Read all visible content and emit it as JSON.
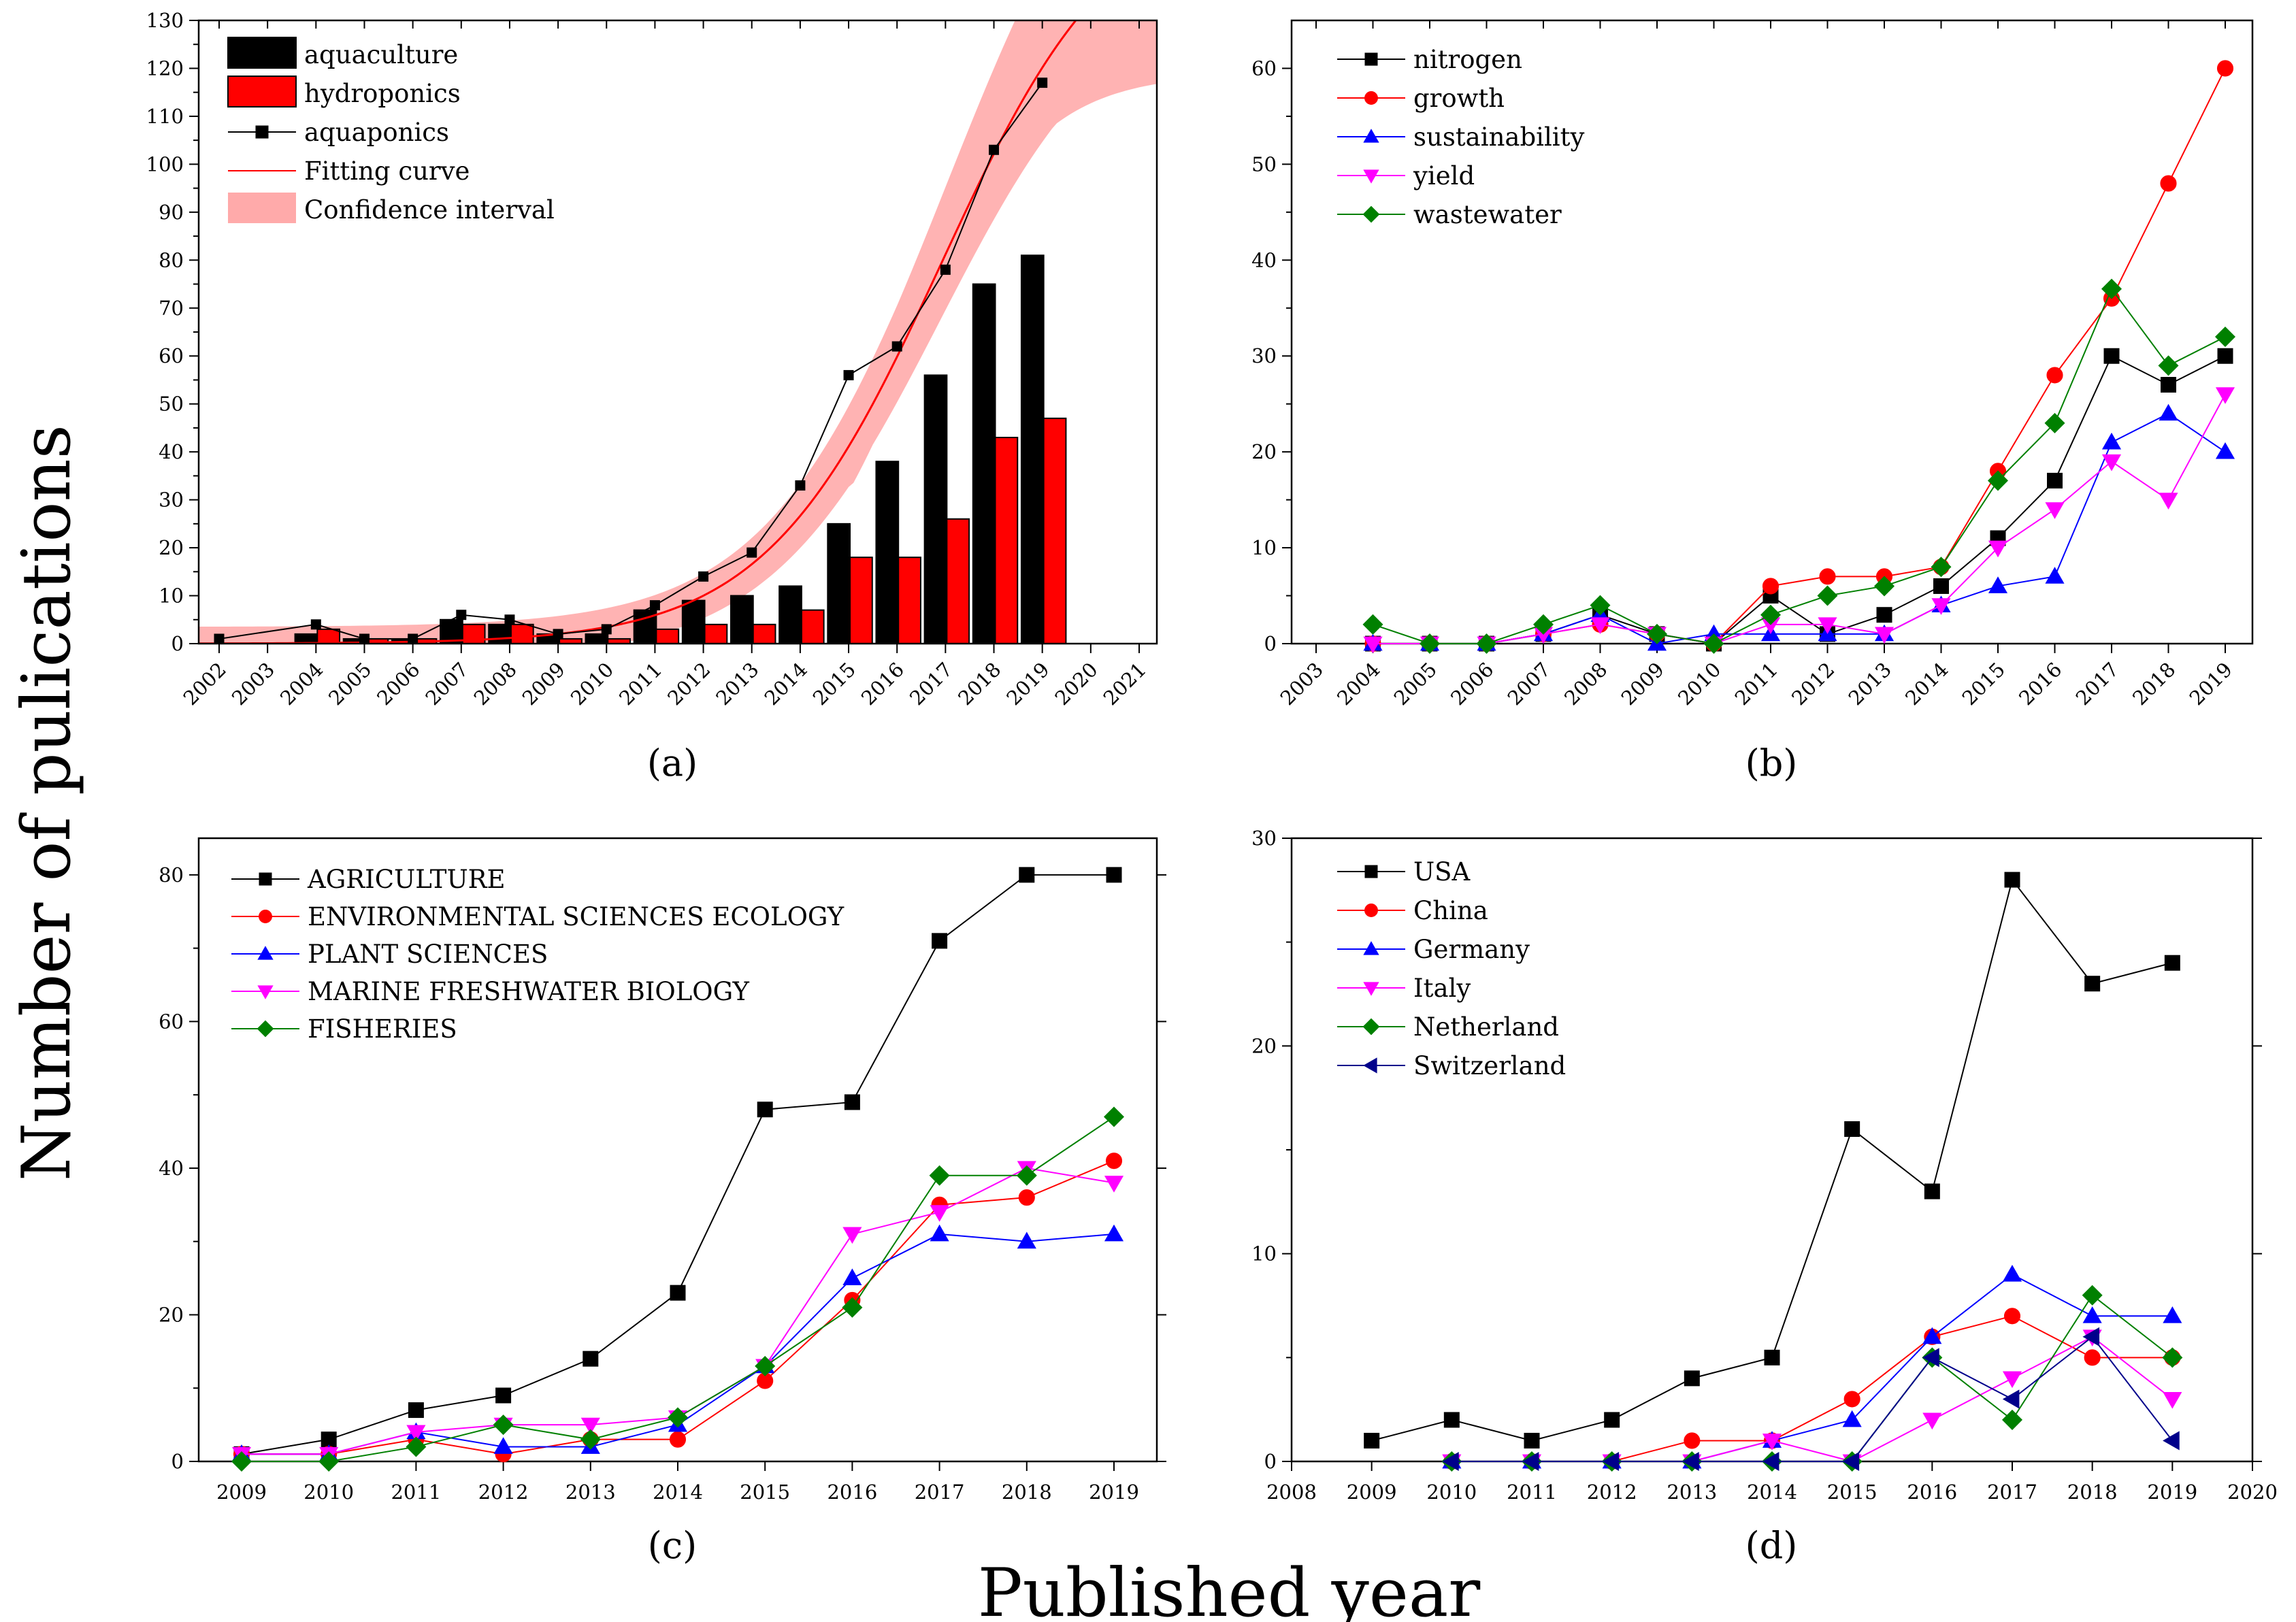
{
  "figure": {
    "ylabel": "Number of pulications",
    "xlabel": "Published year"
  },
  "chart_data": [
    {
      "id": "a",
      "type": "bar",
      "caption": "(a)",
      "ylim": [
        0,
        130
      ],
      "yticks": [
        0,
        10,
        20,
        30,
        40,
        50,
        60,
        70,
        80,
        90,
        100,
        110,
        120,
        130
      ],
      "categories": [
        "2002",
        "2003",
        "2004",
        "2005",
        "2006",
        "2007",
        "2008",
        "2009",
        "2010",
        "2011",
        "2012",
        "2013",
        "2014",
        "2015",
        "2016",
        "2017",
        "2018",
        "2019",
        "2020",
        "2021"
      ],
      "series": [
        {
          "name": "aquaculture",
          "kind": "bar",
          "color": "#000000",
          "values": [
            0,
            0,
            2,
            1,
            1,
            5,
            4,
            2,
            2,
            7,
            9,
            10,
            12,
            25,
            38,
            56,
            75,
            81,
            null,
            null
          ]
        },
        {
          "name": "hydroponics",
          "kind": "bar",
          "color": "#ff0000",
          "values": [
            0,
            0,
            3,
            1,
            1,
            4,
            4,
            1,
            1,
            3,
            4,
            4,
            7,
            18,
            18,
            26,
            43,
            47,
            null,
            null
          ]
        },
        {
          "name": "aquaponics",
          "kind": "line",
          "color": "#000000",
          "marker": "square",
          "values": [
            1,
            null,
            4,
            1,
            1,
            6,
            5,
            2,
            3,
            8,
            14,
            19,
            33,
            56,
            62,
            78,
            103,
            117,
            null,
            null
          ]
        },
        {
          "name": "Fitting curve",
          "kind": "curve",
          "color": "#ff0000"
        },
        {
          "name": "Confidence interval",
          "kind": "band",
          "color": "#ffaaaa"
        }
      ]
    },
    {
      "id": "b",
      "type": "line",
      "caption": "(b)",
      "ylim": [
        0,
        65
      ],
      "yticks": [
        0,
        10,
        20,
        30,
        40,
        50,
        60
      ],
      "categories": [
        "2003",
        "2004",
        "2005",
        "2006",
        "2007",
        "2008",
        "2009",
        "2010",
        "2011",
        "2012",
        "2013",
        "2014",
        "2015",
        "2016",
        "2017",
        "2018",
        "2019"
      ],
      "series": [
        {
          "name": "nitrogen",
          "color": "#000000",
          "marker": "square",
          "values": [
            null,
            0,
            0,
            0,
            1,
            3,
            1,
            0,
            5,
            1,
            3,
            6,
            11,
            17,
            30,
            27,
            30
          ]
        },
        {
          "name": "growth",
          "color": "#ff0000",
          "marker": "circle",
          "values": [
            null,
            0,
            0,
            0,
            1,
            2,
            1,
            0,
            6,
            7,
            7,
            8,
            18,
            28,
            36,
            48,
            60
          ]
        },
        {
          "name": "sustainability",
          "color": "#0000ff",
          "marker": "triangle-up",
          "values": [
            null,
            0,
            0,
            0,
            1,
            3,
            0,
            1,
            1,
            1,
            1,
            4,
            6,
            7,
            21,
            24,
            20
          ]
        },
        {
          "name": "yield",
          "color": "#ff00ff",
          "marker": "triangle-down",
          "values": [
            null,
            0,
            0,
            0,
            1,
            2,
            1,
            0,
            2,
            2,
            1,
            4,
            10,
            14,
            19,
            15,
            26
          ]
        },
        {
          "name": "wastewater",
          "color": "#008000",
          "marker": "diamond",
          "values": [
            null,
            2,
            0,
            0,
            2,
            4,
            1,
            0,
            3,
            5,
            6,
            8,
            17,
            23,
            37,
            29,
            32
          ]
        }
      ]
    },
    {
      "id": "c",
      "type": "line",
      "caption": "(c)",
      "ylim": [
        0,
        85
      ],
      "yticks": [
        0,
        20,
        40,
        60,
        80
      ],
      "categories": [
        "2009",
        "2010",
        "2011",
        "2012",
        "2013",
        "2014",
        "2015",
        "2016",
        "2017",
        "2018",
        "2019"
      ],
      "series": [
        {
          "name": "AGRICULTURE",
          "color": "#000000",
          "marker": "square",
          "values": [
            1,
            3,
            7,
            9,
            14,
            23,
            48,
            49,
            71,
            80,
            80
          ]
        },
        {
          "name": "ENVIRONMENTAL SCIENCES ECOLOGY",
          "color": "#ff0000",
          "marker": "circle",
          "values": [
            1,
            1,
            3,
            1,
            3,
            3,
            11,
            22,
            35,
            36,
            41
          ]
        },
        {
          "name": "PLANT SCIENCES",
          "color": "#0000ff",
          "marker": "triangle-up",
          "values": [
            1,
            1,
            4,
            2,
            2,
            5,
            13,
            25,
            31,
            30,
            31
          ]
        },
        {
          "name": "MARINE FRESHWATER BIOLOGY",
          "color": "#ff00ff",
          "marker": "triangle-down",
          "values": [
            1,
            1,
            4,
            5,
            5,
            6,
            13,
            31,
            34,
            40,
            38
          ]
        },
        {
          "name": "FISHERIES",
          "color": "#008000",
          "marker": "diamond",
          "values": [
            0,
            0,
            2,
            5,
            3,
            6,
            13,
            21,
            39,
            39,
            47
          ]
        }
      ]
    },
    {
      "id": "d",
      "type": "line",
      "caption": "(d)",
      "ylim": [
        0,
        30
      ],
      "yticks": [
        0,
        10,
        20,
        30
      ],
      "categories": [
        "2008",
        "2009",
        "2010",
        "2011",
        "2012",
        "2013",
        "2014",
        "2015",
        "2016",
        "2017",
        "2018",
        "2019",
        "2020"
      ],
      "series": [
        {
          "name": "USA",
          "color": "#000000",
          "marker": "square",
          "values": [
            null,
            1,
            2,
            1,
            2,
            4,
            5,
            16,
            13,
            28,
            23,
            24,
            null
          ]
        },
        {
          "name": "China",
          "color": "#ff0000",
          "marker": "circle",
          "values": [
            null,
            null,
            0,
            0,
            0,
            1,
            1,
            3,
            6,
            7,
            5,
            5,
            null
          ]
        },
        {
          "name": "Germany",
          "color": "#0000ff",
          "marker": "triangle-up",
          "values": [
            null,
            null,
            0,
            0,
            0,
            0,
            1,
            2,
            6,
            9,
            7,
            7,
            null
          ]
        },
        {
          "name": "Italy",
          "color": "#ff00ff",
          "marker": "triangle-down",
          "values": [
            null,
            null,
            0,
            0,
            0,
            0,
            1,
            0,
            2,
            4,
            6,
            3,
            null
          ]
        },
        {
          "name": "Netherland",
          "color": "#008000",
          "marker": "diamond",
          "values": [
            null,
            null,
            0,
            0,
            0,
            0,
            0,
            0,
            5,
            2,
            8,
            5,
            null
          ]
        },
        {
          "name": "Switzerland",
          "color": "#00008b",
          "marker": "triangle-left",
          "values": [
            null,
            null,
            0,
            0,
            0,
            0,
            0,
            0,
            5,
            3,
            6,
            1,
            null
          ]
        }
      ]
    }
  ]
}
